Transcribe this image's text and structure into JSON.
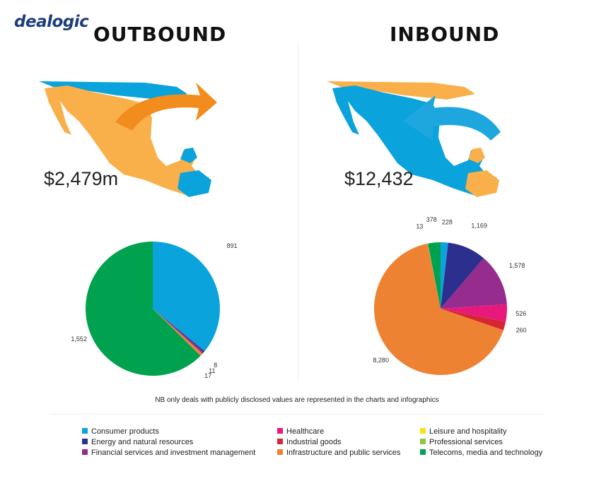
{
  "brand": {
    "logo": "dealogic"
  },
  "note": "NB only deals with publicly disclosed values are represented in the charts and infographics",
  "colors": {
    "Consumer products": "#0aa3dc",
    "Energy and natural resources": "#2d2f8f",
    "Financial services and investment management": "#952c8e",
    "Healthcare": "#e8197d",
    "Industrial goods": "#d42733",
    "Infrastructure and public services": "#ee8233",
    "Leisure and hospitality": "#f7e11b",
    "Professional services": "#8dc63f",
    "Telecoms, media and technology": "#00a24f",
    "map_fill": "#f9b04a",
    "map_highlight": "#0aa3dc",
    "arrow_out": "#f28c1c",
    "arrow_in": "#1ea7df"
  },
  "legend": {
    "columns": [
      [
        "Consumer products",
        "Energy and natural resources",
        "Financial services and investment management"
      ],
      [
        "Healthcare",
        "Industrial goods",
        "Infrastructure and public services"
      ],
      [
        "Leisure and hospitality",
        "Professional services",
        "Telecoms, media and technology"
      ]
    ]
  },
  "outbound": {
    "heading": "OUTBOUND",
    "total": "$2,479m"
  },
  "inbound": {
    "heading": "INBOUND",
    "total": "$12,432"
  },
  "chart_data": [
    {
      "type": "pie",
      "title": "OUTBOUND",
      "categories": [
        "Consumer products",
        "Energy and natural resources",
        "Financial services and investment management",
        "Infrastructure and public services",
        "Telecoms, media and technology"
      ],
      "values": [
        891,
        8,
        11,
        17,
        1552
      ],
      "labels": [
        "891",
        "8",
        "11",
        "17",
        "1,552"
      ]
    },
    {
      "type": "pie",
      "title": "INBOUND",
      "categories": [
        "Consumer products",
        "Energy and natural resources",
        "Financial services and investment management",
        "Healthcare",
        "Industrial goods",
        "Infrastructure and public services",
        "Professional services",
        "Telecoms, media and technology"
      ],
      "values": [
        228,
        1169,
        1578,
        526,
        260,
        8280,
        13,
        378
      ],
      "labels": [
        "228",
        "1,169",
        "1,578",
        "526",
        "260",
        "8,280",
        "13",
        "378"
      ]
    }
  ]
}
